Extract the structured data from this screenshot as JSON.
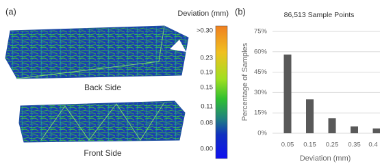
{
  "panel_a": {
    "label": "(a)",
    "colorbar": {
      "title": "Deviation (mm)",
      "ticks": [
        ">0.30",
        "0.23",
        "0.19",
        "0.15",
        "0.11",
        "0.08",
        "0.00"
      ]
    },
    "captions": [
      "Back Side",
      "Front Side"
    ]
  },
  "panel_b": "(b)",
  "chart_data": {
    "type": "bar",
    "title": "86,513 Sample Points",
    "y_label": "Percentage of Samples",
    "x_label": "Deviation (mm)",
    "categories": [
      "0.05",
      "0.15",
      "0.25",
      "0.35",
      "0.4"
    ],
    "values": [
      58,
      25,
      11,
      5,
      3.5
    ],
    "color": "#595959",
    "ylim": [
      0,
      75
    ],
    "yticks": [
      {
        "value": 0,
        "label": "0%"
      },
      {
        "value": 15,
        "label": "15%"
      },
      {
        "value": 30,
        "label": "30%"
      },
      {
        "value": 45,
        "label": "45%"
      },
      {
        "value": 60,
        "label": "60%"
      },
      {
        "value": 75,
        "label": "75%"
      }
    ],
    "grid": true
  }
}
